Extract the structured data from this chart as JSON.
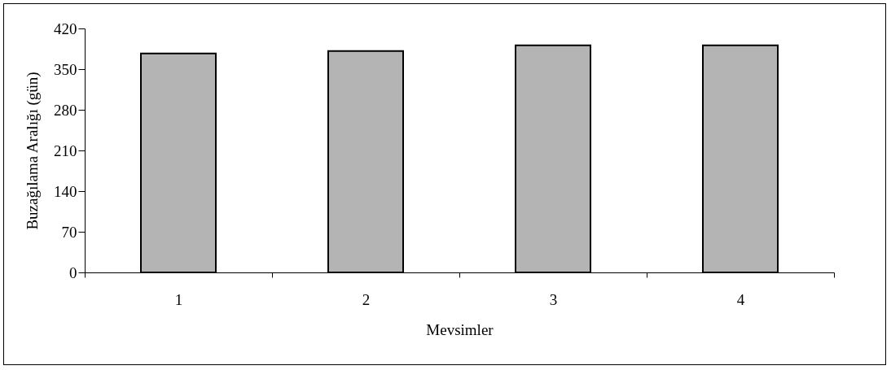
{
  "chart_data": {
    "type": "bar",
    "xlabel": "Mevsimler",
    "ylabel": "Buzağılama Aralığı (gün)",
    "categories": [
      "1",
      "2",
      "3",
      "4"
    ],
    "values": [
      377,
      381,
      391,
      391
    ],
    "color": "#b4b4b4",
    "ylim": [
      0,
      420
    ],
    "yticks": [
      0,
      70,
      140,
      210,
      280,
      350,
      420
    ],
    "grid": false
  }
}
